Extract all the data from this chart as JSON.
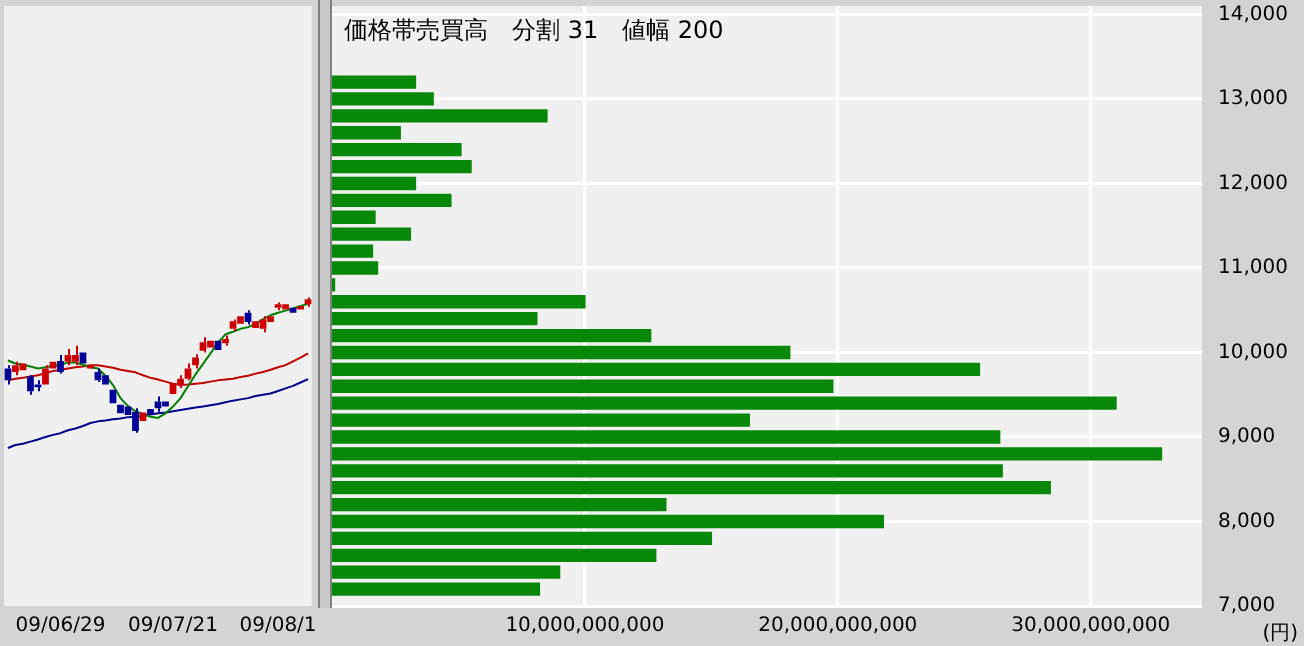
{
  "chart_data": [
    {
      "type": "candlestick",
      "categories": [
        null,
        null,
        null,
        null,
        null,
        null,
        null,
        "09/06/29",
        null,
        null,
        null,
        null,
        null,
        null,
        null,
        null,
        null,
        null,
        null,
        null,
        null,
        null,
        "09/07/21",
        null,
        null,
        null,
        null,
        null,
        null,
        null,
        null,
        null,
        null,
        null,
        null,
        null,
        "09/08/1",
        null,
        null,
        null,
        null
      ],
      "ohlc": [
        [
          9810,
          9850,
          9620,
          9670
        ],
        [
          9770,
          9890,
          9730,
          9850
        ],
        [
          9790,
          9870,
          9790,
          9870
        ],
        [
          9720,
          9730,
          9500,
          9540
        ],
        [
          9620,
          9670,
          9540,
          9590
        ],
        [
          9620,
          9850,
          9620,
          9810
        ],
        [
          9810,
          9890,
          9810,
          9890
        ],
        [
          9900,
          9970,
          9750,
          9770
        ],
        [
          9890,
          10040,
          9850,
          9970
        ],
        [
          9890,
          10080,
          9850,
          9970
        ],
        [
          10000,
          10000,
          9870,
          9870
        ],
        [
          9810,
          9850,
          9810,
          9850
        ],
        [
          9770,
          9810,
          9650,
          9670
        ],
        [
          9730,
          9730,
          9620,
          9620
        ],
        [
          9560,
          9560,
          9400,
          9400
        ],
        [
          9380,
          9380,
          9280,
          9280
        ],
        [
          9360,
          9360,
          9260,
          9260
        ],
        [
          9300,
          9340,
          9050,
          9070
        ],
        [
          9190,
          9290,
          9190,
          9290
        ],
        [
          9330,
          9330,
          9260,
          9260
        ],
        [
          9420,
          9480,
          9300,
          9340
        ],
        [
          9420,
          9420,
          9360,
          9360
        ],
        [
          9510,
          9640,
          9510,
          9640
        ],
        [
          9620,
          9730,
          9580,
          9690
        ],
        [
          9690,
          9870,
          9670,
          9810
        ],
        [
          9850,
          9980,
          9810,
          9940
        ],
        [
          10020,
          10180,
          10000,
          10120
        ],
        [
          10060,
          10140,
          10060,
          10140
        ],
        [
          10140,
          10140,
          10030,
          10030
        ],
        [
          10110,
          10200,
          10080,
          10160
        ],
        [
          10280,
          10390,
          10250,
          10370
        ],
        [
          10340,
          10430,
          10340,
          10430
        ],
        [
          10470,
          10500,
          10330,
          10360
        ],
        [
          10290,
          10370,
          10290,
          10370
        ],
        [
          10280,
          10430,
          10240,
          10390
        ],
        [
          10360,
          10430,
          10360,
          10430
        ],
        [
          10530,
          10590,
          10500,
          10570
        ],
        [
          10510,
          10570,
          10510,
          10570
        ],
        [
          10530,
          10530,
          10470,
          10470
        ],
        [
          10510,
          10550,
          10510,
          10550
        ],
        [
          10570,
          10650,
          10540,
          10630
        ]
      ],
      "colors": [
        "#000099",
        "#cc0000",
        "#cc0000",
        "#000099",
        "#000099",
        "#cc0000",
        "#cc0000",
        "#000099",
        "#cc0000",
        "#cc0000",
        "#000099",
        "#cc0000",
        "#000099",
        "#000099",
        "#000099",
        "#000099",
        "#000099",
        "#000099",
        "#cc0000",
        "#000099",
        "#000099",
        "#000099",
        "#cc0000",
        "#cc0000",
        "#cc0000",
        "#cc0000",
        "#cc0000",
        "#cc0000",
        "#000099",
        "#cc0000",
        "#cc0000",
        "#cc0000",
        "#000099",
        "#cc0000",
        "#cc0000",
        "#cc0000",
        "#cc0000",
        "#cc0000",
        "#000099",
        "#cc0000",
        "#cc0000"
      ],
      "series": [
        {
          "type": "line",
          "color": "#008000",
          "values": [
            9905,
            9870,
            9855,
            9835,
            9810,
            9825,
            9840,
            9855,
            9880,
            9880,
            9855,
            9825,
            9810,
            9725,
            9615,
            9460,
            9365,
            9305,
            9270,
            9240,
            9225,
            9280,
            9360,
            9460,
            9600,
            9740,
            9865,
            9990,
            10120,
            10215,
            10245,
            10280,
            10300,
            10340,
            10395,
            10440,
            10470,
            10495,
            10520,
            10550,
            10575
          ]
        },
        {
          "type": "line",
          "color": "#c00000",
          "values": [
            9670,
            9690,
            9700,
            9716,
            9730,
            9755,
            9780,
            9795,
            9810,
            9825,
            9835,
            9850,
            9850,
            9835,
            9820,
            9795,
            9780,
            9765,
            9730,
            9700,
            9680,
            9655,
            9630,
            9615,
            9620,
            9630,
            9640,
            9655,
            9670,
            9680,
            9690,
            9710,
            9725,
            9750,
            9770,
            9795,
            9825,
            9850,
            9895,
            9940,
            9990
          ]
        },
        {
          "type": "line",
          "color": "#00008b",
          "values": [
            8870,
            8905,
            8920,
            8945,
            8970,
            9000,
            9025,
            9045,
            9080,
            9100,
            9130,
            9165,
            9185,
            9195,
            9210,
            9220,
            9235,
            9240,
            9250,
            9265,
            9280,
            9290,
            9305,
            9320,
            9335,
            9350,
            9360,
            9375,
            9390,
            9410,
            9430,
            9445,
            9460,
            9485,
            9500,
            9515,
            9545,
            9575,
            9605,
            9645,
            9685
          ]
        }
      ],
      "ylim": [
        7000,
        14100
      ],
      "tick_labels": "x"
    },
    {
      "type": "bar",
      "orientation": "horizontal",
      "title": "価格帯売買高　分割 31　値幅 200",
      "ylabel": "(円)",
      "color": "#088808",
      "x": [
        13200,
        13000,
        12800,
        12600,
        12400,
        12200,
        12000,
        11800,
        11600,
        11400,
        11200,
        11000,
        10800,
        10600,
        10400,
        10200,
        10000,
        9800,
        9600,
        9400,
        9200,
        9000,
        8800,
        8600,
        8400,
        8200,
        8000,
        7800,
        7600,
        7400,
        7200
      ],
      "values": [
        3300000000,
        4000000000,
        8500000000,
        2700000000,
        5100000000,
        5500000000,
        3300000000,
        4700000000,
        1700000000,
        3100000000,
        1600000000,
        1800000000,
        100000000,
        10000000000,
        8100000000,
        12600000000,
        18100000000,
        25600000000,
        19800000000,
        31000000000,
        16500000000,
        26400000000,
        32800000000,
        26500000000,
        28400000000,
        13200000000,
        21800000000,
        15000000000,
        12800000000,
        9000000000,
        8200000000
      ],
      "xlim": [
        0,
        34400000000
      ],
      "xticks": [
        {
          "value": 10000000000,
          "label": "10,000,000,000"
        },
        {
          "value": 20000000000,
          "label": "20,000,000,000"
        },
        {
          "value": 30000000000,
          "label": "30,000,000,000"
        }
      ],
      "ylim": [
        7000,
        14100
      ],
      "yticks": [
        {
          "value": 7000,
          "label": "7,000"
        },
        {
          "value": 8000,
          "label": "8,000"
        },
        {
          "value": 9000,
          "label": "9,000"
        },
        {
          "value": 10000,
          "label": "10,000"
        },
        {
          "value": 11000,
          "label": "11,000"
        },
        {
          "value": 12000,
          "label": "12,000"
        },
        {
          "value": 13000,
          "label": "13,000"
        },
        {
          "value": 14000,
          "label": "14,000"
        }
      ],
      "grid": true
    }
  ]
}
